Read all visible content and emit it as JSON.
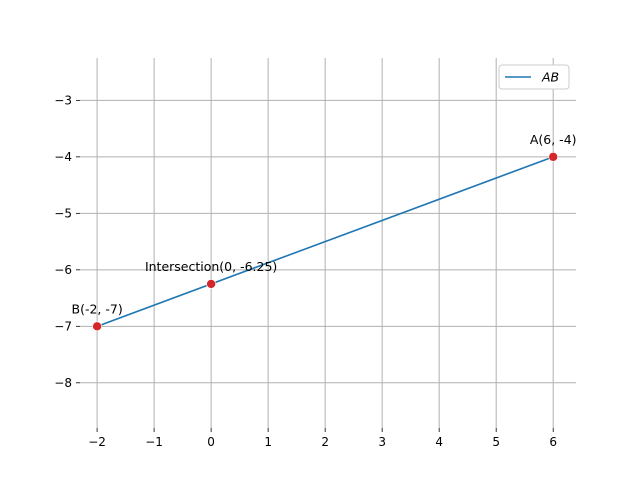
{
  "chart_data": {
    "type": "line",
    "title": "",
    "xlabel": "",
    "ylabel": "",
    "xlim": [
      -2.3,
      6.4
    ],
    "ylim": [
      -8.8,
      -2.25
    ],
    "xticks": [
      -2,
      -1,
      0,
      1,
      2,
      3,
      4,
      5,
      6
    ],
    "yticks": [
      -8,
      -7,
      -6,
      -5,
      -4,
      -3
    ],
    "xtick_labels": [
      "−2",
      "−1",
      "0",
      "1",
      "2",
      "3",
      "4",
      "5",
      "6"
    ],
    "ytick_labels": [
      "−8",
      "−7",
      "−6",
      "−5",
      "−4",
      "−3"
    ],
    "grid": true,
    "legend_position": "top-right",
    "series": [
      {
        "name": "AB",
        "color": "#1f77b4",
        "x": [
          -2,
          6
        ],
        "y": [
          -7,
          -4
        ]
      }
    ],
    "points": [
      {
        "x": 6,
        "y": -4,
        "label": "A(6, -4)",
        "color": "#d62728"
      },
      {
        "x": -2,
        "y": -7,
        "label": "B(-2, -7)",
        "color": "#d62728"
      },
      {
        "x": 0,
        "y": -6.25,
        "label": "Intersection(0, -6.25)",
        "color": "#d62728"
      }
    ]
  }
}
